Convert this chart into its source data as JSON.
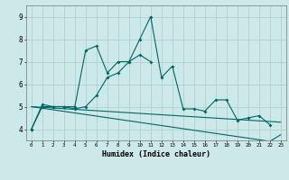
{
  "xlabel": "Humidex (Indice chaleur)",
  "x": [
    0,
    1,
    2,
    3,
    4,
    5,
    6,
    7,
    8,
    9,
    10,
    11,
    12,
    13,
    14,
    15,
    16,
    17,
    18,
    19,
    20,
    21,
    22,
    23
  ],
  "y_line1": [
    4.0,
    5.1,
    5.0,
    5.0,
    5.0,
    7.5,
    7.7,
    6.5,
    7.0,
    7.0,
    8.0,
    9.0,
    6.3,
    6.8,
    4.9,
    4.9,
    4.8,
    5.3,
    5.3,
    4.4,
    4.5,
    4.6,
    4.2,
    null
  ],
  "y_line2": [
    4.0,
    5.0,
    5.0,
    5.0,
    4.9,
    5.0,
    5.5,
    6.3,
    6.5,
    7.0,
    7.3,
    7.0,
    null,
    null,
    null,
    null,
    null,
    null,
    null,
    null,
    null,
    null,
    null,
    null
  ],
  "y_line3": [
    5.0,
    4.97,
    4.94,
    4.91,
    4.88,
    4.85,
    4.82,
    4.79,
    4.76,
    4.73,
    4.7,
    4.67,
    4.64,
    4.61,
    4.58,
    4.55,
    4.52,
    4.49,
    4.46,
    4.43,
    4.4,
    4.37,
    4.34,
    4.31
  ],
  "y_line4": [
    5.0,
    4.93,
    4.86,
    4.79,
    4.72,
    4.65,
    4.58,
    4.51,
    4.44,
    4.37,
    4.3,
    4.23,
    4.16,
    4.09,
    4.02,
    3.95,
    3.88,
    3.81,
    3.74,
    3.67,
    3.6,
    3.53,
    3.46,
    3.75
  ],
  "ylim": [
    3.5,
    9.5
  ],
  "yticks": [
    4,
    5,
    6,
    7,
    8,
    9
  ],
  "bg_color": "#cce8e8",
  "line_color": "#006666",
  "grid_color": "#aacccc"
}
